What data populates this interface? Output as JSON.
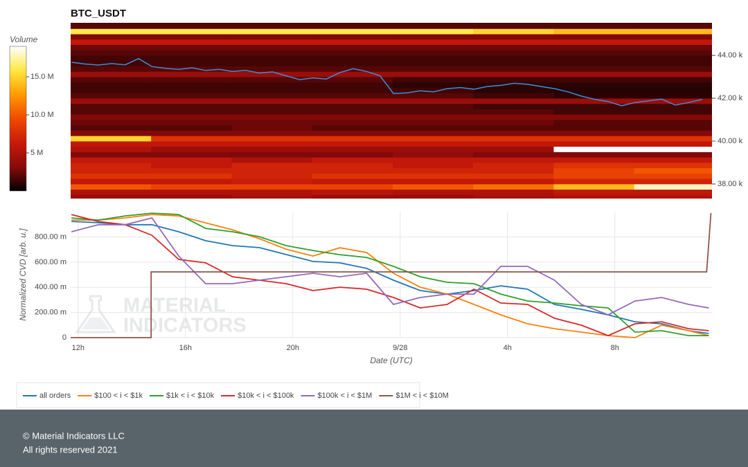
{
  "chart_data": [
    {
      "type": "heatmap",
      "title": "BTC_USDT",
      "xlim": [
        11.72,
        35.62
      ],
      "ylim": [
        37320,
        45520
      ],
      "yticks": [
        {
          "value": 38000,
          "label": "38.00 k"
        },
        {
          "value": 40000,
          "label": "40.00 k"
        },
        {
          "value": 42000,
          "label": "42.00 k"
        },
        {
          "value": 44000,
          "label": "44.00 k"
        }
      ],
      "colorbar": {
        "title": "Volume",
        "lim": [
          0,
          19000000
        ],
        "ticks": [
          {
            "value": 5000000,
            "label": "5 M"
          },
          {
            "value": 10000000,
            "label": "10.0 M"
          },
          {
            "value": 15000000,
            "label": "15.0 M"
          }
        ]
      },
      "colorscale": [
        "#000000",
        "#8a0a0a",
        "#c81a0a",
        "#f04a00",
        "#ff9a00",
        "#ffe840",
        "#ffffff"
      ],
      "time_bins": [
        11.72,
        14.72,
        17.72,
        20.72,
        23.72,
        26.72,
        29.72,
        32.72,
        35.62
      ],
      "price_bins": [
        37250,
        37500,
        37750,
        38000,
        38250,
        38500,
        38750,
        39000,
        39250,
        39500,
        39750,
        40000,
        40250,
        40500,
        40750,
        41000,
        41250,
        41500,
        41750,
        42000,
        42250,
        42500,
        42750,
        43000,
        43250,
        43500,
        43750,
        44000,
        44250,
        44500,
        44750,
        45000,
        45250,
        45500
      ],
      "volume": [
        [
          4000000,
          4000000,
          4500000,
          4000000,
          4000000,
          4500000,
          5000000,
          5000000
        ],
        [
          5000000,
          5000000,
          5000000,
          5500000,
          5000000,
          5000000,
          6000000,
          6000000
        ],
        [
          10000000,
          9000000,
          9000000,
          9000000,
          10000000,
          11000000,
          14000000,
          18000000
        ],
        [
          6000000,
          6000000,
          6500000,
          6000000,
          6000000,
          6000000,
          7000000,
          7000000
        ],
        [
          8000000,
          8000000,
          7000000,
          8000000,
          8000000,
          8000000,
          9000000,
          9000000
        ],
        [
          7000000,
          7000000,
          7000000,
          7000000,
          7000000,
          7000000,
          9000000,
          10000000
        ],
        [
          7000000,
          6000000,
          7000000,
          7000000,
          6000000,
          7000000,
          8000000,
          8000000
        ],
        [
          6000000,
          6000000,
          5000000,
          6000000,
          6000000,
          6000000,
          6000000,
          6000000
        ],
        [
          3000000,
          3000000,
          3000000,
          3000000,
          3500000,
          3000000,
          3000000,
          3000000
        ],
        [
          5000000,
          4000000,
          4000000,
          4000000,
          4000000,
          4000000,
          19000000,
          19000000
        ],
        [
          6000000,
          6000000,
          6000000,
          6000000,
          6000000,
          6000000,
          6000000,
          6000000
        ],
        [
          15000000,
          8000000,
          8000000,
          8000000,
          8000000,
          8000000,
          8000000,
          8000000
        ],
        [
          3000000,
          3000000,
          3000000,
          3000000,
          3000000,
          3000000,
          3000000,
          3000000
        ],
        [
          2000000,
          2000000,
          2500000,
          2000000,
          2000000,
          2000000,
          2000000,
          2000000
        ],
        [
          2500000,
          2500000,
          2500000,
          2500000,
          2500000,
          2500000,
          2000000,
          2000000
        ],
        [
          3000000,
          3000000,
          3000000,
          3000000,
          3000000,
          3000000,
          3000000,
          3000000
        ],
        [
          2000000,
          2000000,
          2000000,
          2000000,
          2000000,
          2000000,
          1500000,
          1500000
        ],
        [
          2000000,
          2000000,
          2000000,
          2000000,
          2000000,
          1500000,
          1500000,
          1500000
        ],
        [
          4000000,
          4000000,
          4000000,
          4000000,
          4000000,
          4000000,
          4000000,
          4000000
        ],
        [
          2000000,
          2000000,
          2000000,
          2000000,
          2000000,
          1500000,
          1000000,
          1000000
        ],
        [
          1500000,
          1500000,
          1500000,
          1500000,
          1500000,
          1000000,
          800000,
          800000
        ],
        [
          1500000,
          1500000,
          1500000,
          1500000,
          1000000,
          1000000,
          1000000,
          1000000
        ],
        [
          2000000,
          2000000,
          2000000,
          2000000,
          1500000,
          1500000,
          1500000,
          1500000
        ],
        [
          4000000,
          4000000,
          4000000,
          4000000,
          4000000,
          4000000,
          4000000,
          4000000
        ],
        [
          2000000,
          2000000,
          2000000,
          2000000,
          2000000,
          2000000,
          2000000,
          2000000
        ],
        [
          1500000,
          1500000,
          1500000,
          1500000,
          1500000,
          1500000,
          1500000,
          1500000
        ],
        [
          1500000,
          1500000,
          1500000,
          1500000,
          1500000,
          1500000,
          1500000,
          1500000
        ],
        [
          2000000,
          2000000,
          2000000,
          2000000,
          2000000,
          2000000,
          2000000,
          2000000
        ],
        [
          2500000,
          2500000,
          2500000,
          2500000,
          2500000,
          2500000,
          2500000,
          2500000
        ],
        [
          6000000,
          6000000,
          6000000,
          6000000,
          6000000,
          6000000,
          6000000,
          6000000
        ],
        [
          3000000,
          3000000,
          3000000,
          3000000,
          3000000,
          3000000,
          3000000,
          3000000
        ],
        [
          16000000,
          16000000,
          16000000,
          16000000,
          16000000,
          15000000,
          14000000,
          14000000
        ],
        [
          2000000,
          2000000,
          2000000,
          2000000,
          2000000,
          2000000,
          2000000,
          2000000
        ]
      ],
      "price": {
        "color": "#3c8fd8",
        "x": [
          11.75,
          12.25,
          12.75,
          13.25,
          13.75,
          14.25,
          14.75,
          15.25,
          15.75,
          16.25,
          16.75,
          17.25,
          17.75,
          18.25,
          18.75,
          19.25,
          19.75,
          20.25,
          20.75,
          21.25,
          21.75,
          22.25,
          22.75,
          23.25,
          23.75,
          24.25,
          24.75,
          25.25,
          25.75,
          26.25,
          26.75,
          27.25,
          27.75,
          28.25,
          28.75,
          29.25,
          29.75,
          30.25,
          30.75,
          31.25,
          31.75,
          32.25,
          32.75,
          33.25,
          33.75,
          34.25,
          34.75,
          35.25
        ],
        "values": [
          43680,
          43600,
          43550,
          43620,
          43560,
          43850,
          43480,
          43400,
          43350,
          43420,
          43300,
          43350,
          43250,
          43300,
          43180,
          43230,
          43050,
          42870,
          42950,
          42900,
          43200,
          43380,
          43250,
          43050,
          42220,
          42250,
          42350,
          42300,
          42450,
          42500,
          42420,
          42550,
          42600,
          42700,
          42650,
          42550,
          42450,
          42300,
          42100,
          41950,
          41850,
          41650,
          41800,
          41880,
          41960,
          41680,
          41800,
          41950
        ]
      }
    },
    {
      "type": "line",
      "xlabel": "Date (UTC)",
      "ylabel": "Normalized CVD [arb. u.]",
      "watermark": [
        "MATERIAL",
        "INDICATORS"
      ],
      "xlim": [
        11.72,
        35.62
      ],
      "ylim": [
        0,
        0.995
      ],
      "grid": true,
      "legend": "bottom",
      "xticks": [
        {
          "value": 12,
          "label": "12h"
        },
        {
          "value": 16,
          "label": "16h"
        },
        {
          "value": 20,
          "label": "20h"
        },
        {
          "value": 24,
          "label": "9/28"
        },
        {
          "value": 28,
          "label": "4h"
        },
        {
          "value": 32,
          "label": "8h"
        }
      ],
      "yticks": [
        0,
        {
          "value": 0.2,
          "label": "200.00 m"
        },
        {
          "value": 0.4,
          "label": "400.00 m"
        },
        {
          "value": 0.6,
          "label": "600.00 m"
        },
        {
          "value": 0.8,
          "label": "800.00 m"
        }
      ],
      "x": [
        11.75,
        12.75,
        13.75,
        14.75,
        15.75,
        16.75,
        17.75,
        18.75,
        19.75,
        20.75,
        21.75,
        22.75,
        23.75,
        24.75,
        25.75,
        26.75,
        27.75,
        28.75,
        29.75,
        30.75,
        31.75,
        32.75,
        33.75,
        34.75,
        35.5
      ],
      "series": [
        {
          "name": "all orders",
          "color": "#1f77b4",
          "values": [
            0.923,
            0.913,
            0.897,
            0.897,
            0.841,
            0.77,
            0.731,
            0.715,
            0.66,
            0.605,
            0.594,
            0.55,
            0.456,
            0.374,
            0.346,
            0.374,
            0.412,
            0.385,
            0.264,
            0.225,
            0.181,
            0.126,
            0.11,
            0.055,
            0.033
          ]
        },
        {
          "name": "$100 < i < $1k",
          "color": "#ff7f0e",
          "values": [
            0.934,
            0.934,
            0.951,
            0.978,
            0.967,
            0.912,
            0.857,
            0.786,
            0.703,
            0.648,
            0.714,
            0.676,
            0.511,
            0.401,
            0.346,
            0.264,
            0.181,
            0.11,
            0.071,
            0.044,
            0.016,
            0,
            0.099,
            0.055,
            0.016
          ]
        },
        {
          "name": "$1k < i < $10k",
          "color": "#2ca02c",
          "values": [
            0.951,
            0.934,
            0.967,
            0.989,
            0.978,
            0.868,
            0.841,
            0.802,
            0.731,
            0.692,
            0.659,
            0.637,
            0.566,
            0.484,
            0.44,
            0.429,
            0.346,
            0.291,
            0.275,
            0.253,
            0.236,
            0.044,
            0.055,
            0.016,
            0.016
          ]
        },
        {
          "name": "$10k < i < $100k",
          "color": "#d62728",
          "values": [
            0.978,
            0.923,
            0.897,
            0.813,
            0.621,
            0.594,
            0.484,
            0.456,
            0.429,
            0.374,
            0.401,
            0.385,
            0.319,
            0.236,
            0.264,
            0.385,
            0.275,
            0.264,
            0.154,
            0.099,
            0.016,
            0.11,
            0.126,
            0.071,
            0.055
          ]
        },
        {
          "name": "$100k < i < $1M",
          "color": "#9467bd",
          "values": [
            0.841,
            0.897,
            0.897,
            0.951,
            0.648,
            0.429,
            0.429,
            0.456,
            0.484,
            0.511,
            0.484,
            0.511,
            0.264,
            0.319,
            0.346,
            0.346,
            0.566,
            0.566,
            0.456,
            0.264,
            0.181,
            0.291,
            0.319,
            0.264,
            0.236
          ]
        },
        {
          "name": "$1M < i < $10M",
          "color": "#8c564b",
          "x": [
            11.72,
            14.72,
            14.72,
            35.42,
            35.58
          ],
          "values": [
            0,
            0,
            0.522,
            0.522,
            0.99
          ]
        }
      ]
    }
  ],
  "footer": {
    "copyright": "© Material Indicators LLC",
    "rights": "All rights reserved 2021"
  }
}
